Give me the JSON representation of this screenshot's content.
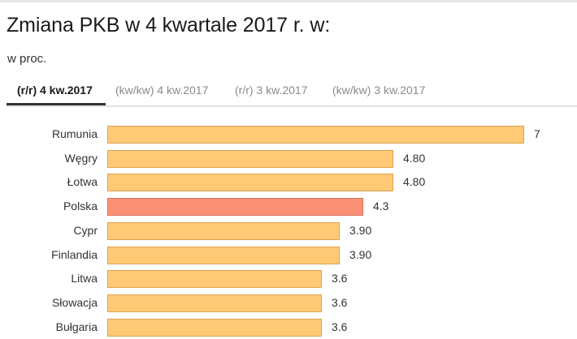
{
  "header": {
    "title": "Zmiana PKB w 4 kwartale 2017 r. w:",
    "subtitle": "w proc."
  },
  "tabs": [
    {
      "label": "(r/r) 4 kw.2017",
      "active": true
    },
    {
      "label": "(kw/kw) 4 kw.2017",
      "active": false
    },
    {
      "label": "(r/r) 3 kw.2017",
      "active": false
    },
    {
      "label": "(kw/kw) 3 kw.2017",
      "active": false
    }
  ],
  "colors": {
    "bar_default": "#ffc976",
    "bar_highlight": "#fb9077",
    "tab_underline": "#333333"
  },
  "chart_data": {
    "type": "bar",
    "orientation": "horizontal",
    "title": "Zmiana PKB w 4 kwartale 2017 r. w:",
    "subtitle": "w proc.",
    "xlabel": "",
    "ylabel": "",
    "categories": [
      "Rumunia",
      "Węgry",
      "Łotwa",
      "Polska",
      "Cypr",
      "Finlandia",
      "Litwa",
      "Słowacja",
      "Bułgaria"
    ],
    "values": [
      7,
      4.8,
      4.8,
      4.3,
      3.9,
      3.9,
      3.6,
      3.6,
      3.6
    ],
    "value_labels": [
      "7",
      "4.80",
      "4.80",
      "4.3",
      "3.90",
      "3.90",
      "3.6",
      "3.6",
      "3.6"
    ],
    "highlighted": [
      "Polska"
    ],
    "xlim": [
      0,
      7
    ],
    "grid": false,
    "legend": null
  }
}
